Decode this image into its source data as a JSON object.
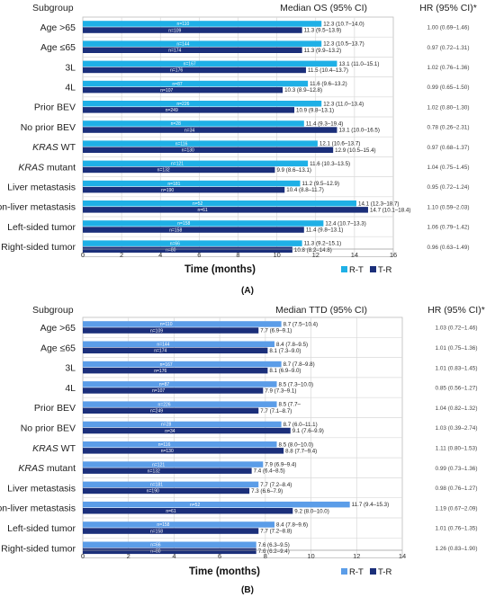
{
  "chart_data": [
    {
      "type": "bar",
      "orientation": "horizontal",
      "panel_label": "(A)",
      "header_subgroup": "Subgroup",
      "header_median": "Median OS (95% CI)",
      "header_hr": "HR (95% CI)*",
      "xlabel": "Time (months)",
      "xlim": [
        0,
        16
      ],
      "xticks": [
        "0",
        "2",
        "4",
        "6",
        "8",
        "10",
        "12",
        "14",
        "16"
      ],
      "legend": [
        "R-T",
        "T-R"
      ],
      "legend_placement": "bottom-right",
      "colors": {
        "R-T": "#1fb0e6",
        "T-R": "#1b2f7a"
      },
      "rows": [
        {
          "subgroup": "Age >65",
          "hr": "1.00 (0.69–1.46)",
          "rt": {
            "median": 12.3,
            "label": "12.3 (10.7–14.0)",
            "n": "n=110"
          },
          "tr": {
            "median": 11.3,
            "label": "11.3 (9.5–13.9)",
            "n": "n=109"
          }
        },
        {
          "subgroup": "Age ≤65",
          "hr": "0.97 (0.72–1.31)",
          "rt": {
            "median": 12.3,
            "label": "12.3 (10.5–13.7)",
            "n": "n=144"
          },
          "tr": {
            "median": 11.3,
            "label": "11.3 (9.9–13.2)",
            "n": "n=174"
          }
        },
        {
          "subgroup": "3L",
          "hr": "1.02 (0.76–1.36)",
          "rt": {
            "median": 13.1,
            "label": "13.1 (11.0–15.1)",
            "n": "n=167"
          },
          "tr": {
            "median": 11.5,
            "label": "11.5 (10.4–13.7)",
            "n": "n=176"
          }
        },
        {
          "subgroup": "4L",
          "hr": "0.99 (0.65–1.50)",
          "rt": {
            "median": 11.6,
            "label": "11.6 (9.6–13.2)",
            "n": "n=87"
          },
          "tr": {
            "median": 10.3,
            "label": "10.3 (8.9–12.8)",
            "n": "n=107"
          }
        },
        {
          "subgroup": "Prior BEV",
          "hr": "1.02 (0.80–1.30)",
          "rt": {
            "median": 12.3,
            "label": "12.3 (11.0–13.4)",
            "n": "n=226"
          },
          "tr": {
            "median": 10.9,
            "label": "10.9 (9.8–13.1)",
            "n": "n=249"
          }
        },
        {
          "subgroup": "No prior BEV",
          "hr": "0.78 (0.26–2.31)",
          "rt": {
            "median": 11.4,
            "label": "11.4 (9.3–19.4)",
            "n": "n=28"
          },
          "tr": {
            "median": 13.1,
            "label": "13.1 (10.0–16.5)",
            "n": "n=34"
          }
        },
        {
          "subgroup": "KRAS WT",
          "italic_prefix": "KRAS",
          "rest": " WT",
          "hr": "0.97 (0.68–1.37)",
          "rt": {
            "median": 12.1,
            "label": "12.1 (10.6–13.7)",
            "n": "n=116"
          },
          "tr": {
            "median": 12.9,
            "label": "12.9 (10.5–15.4)",
            "n": "n=130"
          }
        },
        {
          "subgroup": "KRAS mutant",
          "italic_prefix": "KRAS",
          "rest": " mutant",
          "hr": "1.04 (0.75–1.45)",
          "rt": {
            "median": 11.6,
            "label": "11.6 (10.3–13.5)",
            "n": "n=121"
          },
          "tr": {
            "median": 9.9,
            "label": "9.9 (8.6–13.1)",
            "n": "n=132"
          }
        },
        {
          "subgroup": "Liver metastasis",
          "hr": "0.95 (0.72–1.24)",
          "rt": {
            "median": 11.2,
            "label": "11.2 (9.5–12.9)",
            "n": "n=181"
          },
          "tr": {
            "median": 10.4,
            "label": "10.4 (8.8–11.7)",
            "n": "n=190"
          }
        },
        {
          "subgroup": "Non-liver metastasis",
          "hr": "1.10 (0.59–2.03)",
          "rt": {
            "median": 14.1,
            "label": "14.1 (12.3–18.7)",
            "n": "n=52"
          },
          "tr": {
            "median": 14.7,
            "label": "14.7 (10.1–18.4)",
            "n": "n=61"
          }
        },
        {
          "subgroup": "Left-sided tumor",
          "hr": "1.06 (0.79–1.42)",
          "rt": {
            "median": 12.4,
            "label": "12.4 (10.7–13.3)",
            "n": "n=158"
          },
          "tr": {
            "median": 11.4,
            "label": "11.4 (9.8–13.1)",
            "n": "n=158"
          }
        },
        {
          "subgroup": "Right-sided tumor",
          "hr": "0.96 (0.63–1.49)",
          "rt": {
            "median": 11.3,
            "label": "11.3 (9.2–15.1)",
            "n": "n=66"
          },
          "tr": {
            "median": 10.8,
            "label": "10.8 (8.2–14.8)",
            "n": "n=80"
          }
        }
      ]
    },
    {
      "type": "bar",
      "orientation": "horizontal",
      "panel_label": "(B)",
      "header_subgroup": "Subgroup",
      "header_median": "Median TTD (95% CI)",
      "header_hr": "HR (95% CI)*",
      "xlabel": "Time (months)",
      "xlim": [
        0,
        14
      ],
      "xticks": [
        "0",
        "2",
        "4",
        "6",
        "8",
        "10",
        "12",
        "14"
      ],
      "legend": [
        "R-T",
        "T-R"
      ],
      "legend_placement": "bottom-right",
      "colors": {
        "R-T": "#5b9de8",
        "T-R": "#1b2f7a"
      },
      "rows": [
        {
          "subgroup": "Age >65",
          "hr": "1.03 (0.72–1.46)",
          "rt": {
            "median": 8.7,
            "label": "8.7 (7.5–10.4)",
            "n": "n=110"
          },
          "tr": {
            "median": 7.7,
            "label": "7.7 (6.9–9.1)",
            "n": "n=109"
          }
        },
        {
          "subgroup": "Age ≤65",
          "hr": "1.01 (0.75–1.36)",
          "rt": {
            "median": 8.4,
            "label": "8.4 (7.8–9.5)",
            "n": "n=144"
          },
          "tr": {
            "median": 8.1,
            "label": "8.1 (7.3–9.0)",
            "n": "n=174"
          }
        },
        {
          "subgroup": "3L",
          "hr": "1.01 (0.83–1.45)",
          "rt": {
            "median": 8.7,
            "label": "8.7 (7.8–9.8)",
            "n": "n=167"
          },
          "tr": {
            "median": 8.1,
            "label": "8.1 (6.9–9.0)",
            "n": "n=176"
          }
        },
        {
          "subgroup": "4L",
          "hr": "0.85 (0.56–1.27)",
          "rt": {
            "median": 8.5,
            "label": "8.5 (7.3–10.0)",
            "n": "n=87"
          },
          "tr": {
            "median": 7.9,
            "label": "7.9 (7.3–9.1)",
            "n": "n=107"
          }
        },
        {
          "subgroup": "Prior BEV",
          "hr": "1.04 (0.82–1.32)",
          "rt": {
            "median": 8.5,
            "label": "8.5 (7.7–",
            "n": "n=226"
          },
          "tr": {
            "median": 7.7,
            "label": "7.7 (7.1–8.7)",
            "n": "n=249"
          }
        },
        {
          "subgroup": "No prior BEV",
          "hr": "1.03 (0.39–2.74)",
          "rt": {
            "median": 8.7,
            "label": "8.7 (6.0–11.1)",
            "n": "n=28"
          },
          "tr": {
            "median": 9.1,
            "label": "9.1 (7.6–9.9)",
            "n": "n=34"
          }
        },
        {
          "subgroup": "KRAS WT",
          "italic_prefix": "KRAS",
          "rest": " WT",
          "hr": "1.11 (0.80–1.53)",
          "rt": {
            "median": 8.5,
            "label": "8.5 (8.0–10.0)",
            "n": "n=116"
          },
          "tr": {
            "median": 8.8,
            "label": "8.8 (7.7–9.4)",
            "n": "n=130"
          }
        },
        {
          "subgroup": "KRAS mutant",
          "italic_prefix": "KRAS",
          "rest": " mutant",
          "hr": "0.99 (0.73–1.36)",
          "rt": {
            "median": 7.9,
            "label": "7.9 (6.9–9.4)",
            "n": "n=121"
          },
          "tr": {
            "median": 7.4,
            "label": "7.4 (6.4–8.5)",
            "n": "n=132"
          }
        },
        {
          "subgroup": "Liver metastasis",
          "hr": "0.98 (0.76–1.27)",
          "rt": {
            "median": 7.7,
            "label": "7.7 (7.2–8.4)",
            "n": "n=181"
          },
          "tr": {
            "median": 7.3,
            "label": "7.3 (6.6–7.9)",
            "n": "n=190"
          }
        },
        {
          "subgroup": "Non-liver metastasis",
          "hr": "1.19 (0.67–2.09)",
          "rt": {
            "median": 11.7,
            "label": "11.7 (9.4–15.3)",
            "n": "n=52"
          },
          "tr": {
            "median": 9.2,
            "label": "9.2 (8.0–10.0)",
            "n": "n=61"
          }
        },
        {
          "subgroup": "Left-sided tumor",
          "hr": "1.01 (0.76–1.35)",
          "rt": {
            "median": 8.4,
            "label": "8.4 (7.8–9.6)",
            "n": "n=158"
          },
          "tr": {
            "median": 7.7,
            "label": "7.7 (7.2–8.8)",
            "n": "n=158"
          }
        },
        {
          "subgroup": "Right-sided tumor",
          "hr": "1.26 (0.83–1.90)",
          "rt": {
            "median": 7.6,
            "label": "7.6 (6.3–9.5)",
            "n": "n=66"
          },
          "tr": {
            "median": 7.6,
            "label": "7.6 (6.2–9.4)",
            "n": "n=80"
          }
        }
      ]
    }
  ]
}
